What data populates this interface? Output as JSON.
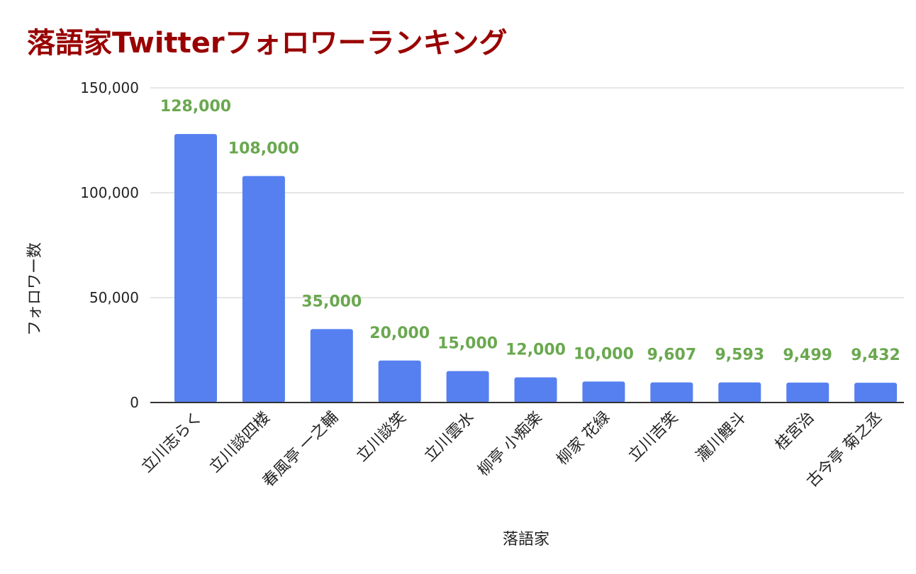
{
  "chart_data": {
    "type": "bar",
    "title": "落語家Twitterフォロワーランキング",
    "xlabel": "落語家",
    "ylabel": "フォロワー数",
    "ylim": [
      0,
      150000
    ],
    "yticks": [
      0,
      50000,
      100000,
      150000
    ],
    "ytick_labels": [
      "0",
      "50,000",
      "100,000",
      "150,000"
    ],
    "grid": true,
    "legend": "none",
    "categories": [
      "立川志らく",
      "立川談四楼",
      "春風亭 一之輔",
      "立川談笑",
      "立川雲水",
      "柳亭 小痴楽",
      "柳家 花緑",
      "立川吉笑",
      "瀧川鯉斗",
      "桂宮治",
      "古今亭 菊之丞"
    ],
    "values": [
      128000,
      108000,
      35000,
      20000,
      15000,
      12000,
      10000,
      9607,
      9593,
      9499,
      9432
    ],
    "data_labels": [
      "128,000",
      "108,000",
      "35,000",
      "20,000",
      "15,000",
      "12,000",
      "10,000",
      "9,607",
      "9,593",
      "9,499",
      "9,432"
    ],
    "colors": {
      "bar": "#5680f0",
      "data_label": "#6aa84f",
      "title": "#990000",
      "grid": "#cccccc",
      "axis": "#333333"
    }
  }
}
